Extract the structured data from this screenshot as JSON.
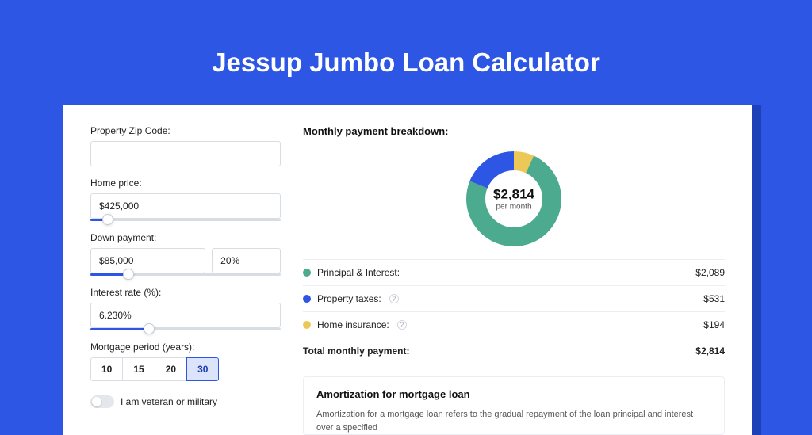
{
  "page": {
    "title": "Jessup Jumbo Loan Calculator",
    "background_color": "#2d56e5",
    "card_shadow_color": "#1e41b8"
  },
  "form": {
    "zip": {
      "label": "Property Zip Code:",
      "value": ""
    },
    "home_price": {
      "label": "Home price:",
      "value": "$425,000",
      "slider_pct": 9
    },
    "down_payment": {
      "label": "Down payment:",
      "value": "$85,000",
      "pct_value": "20%",
      "slider_pct": 20
    },
    "interest_rate": {
      "label": "Interest rate (%):",
      "value": "6.230%",
      "slider_pct": 31
    },
    "mortgage_period": {
      "label": "Mortgage period (years):",
      "options": [
        "10",
        "15",
        "20",
        "30"
      ],
      "selected_index": 3
    },
    "veteran": {
      "label": "I am veteran or military",
      "checked": false
    }
  },
  "breakdown": {
    "title": "Monthly payment breakdown:",
    "donut": {
      "center_amount": "$2,814",
      "center_sub": "per month",
      "slices": [
        {
          "label": "Principal & Interest:",
          "value": "$2,089",
          "color": "#4cab8f",
          "fraction": 0.742,
          "has_info": false
        },
        {
          "label": "Property taxes:",
          "value": "$531",
          "color": "#2d56e5",
          "fraction": 0.189,
          "has_info": true
        },
        {
          "label": "Home insurance:",
          "value": "$194",
          "color": "#ecc957",
          "fraction": 0.069,
          "has_info": true
        }
      ],
      "inner_radius": 36,
      "outer_radius": 60
    },
    "total": {
      "label": "Total monthly payment:",
      "value": "$2,814"
    }
  },
  "amortization": {
    "title": "Amortization for mortgage loan",
    "text": "Amortization for a mortgage loan refers to the gradual repayment of the loan principal and interest over a specified"
  }
}
